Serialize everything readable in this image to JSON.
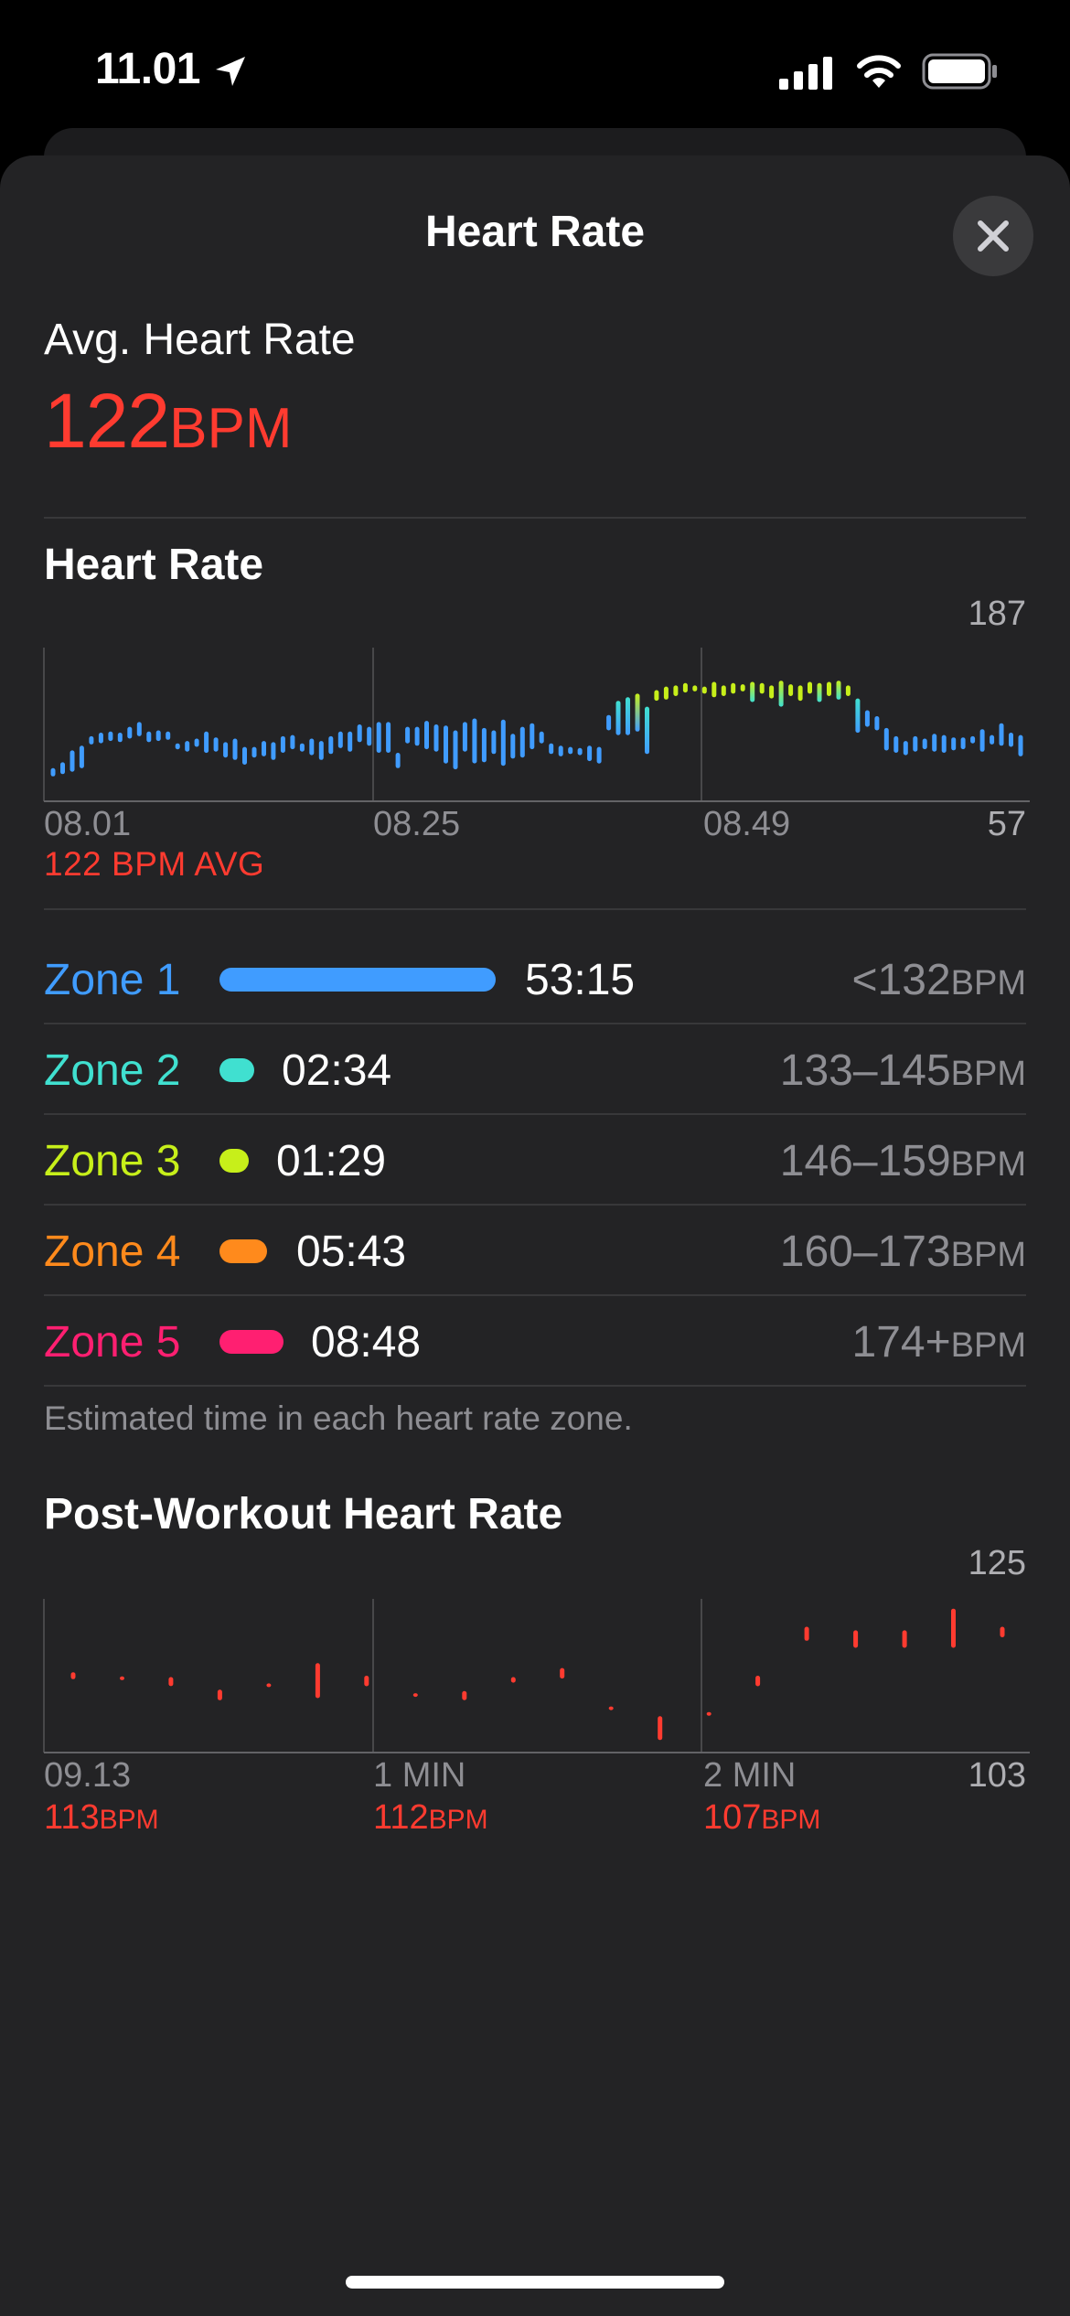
{
  "status_bar": {
    "time": "11.01",
    "icons": [
      "location-arrow-icon",
      "cellular-signal-icon",
      "wifi-icon",
      "battery-icon"
    ]
  },
  "sheet": {
    "title": "Heart Rate",
    "close_icon": "close-icon"
  },
  "average": {
    "label": "Avg. Heart Rate",
    "value": "122",
    "unit": "BPM",
    "color": "#ff3b30"
  },
  "heart_rate_chart": {
    "title": "Heart Rate",
    "y_max_label": "187",
    "y_min_label": "57",
    "x_labels": [
      "08.01",
      "08.25",
      "08.49"
    ],
    "avg_caption": "122 BPM AVG"
  },
  "zones": {
    "items": [
      {
        "label": "Zone 1",
        "time": "53:15",
        "range": "<132",
        "unit": "BPM",
        "color": "#409cff",
        "duration_seconds": 3195
      },
      {
        "label": "Zone 2",
        "time": "02:34",
        "range": "133–145",
        "unit": "BPM",
        "color": "#40e0d0",
        "duration_seconds": 154
      },
      {
        "label": "Zone 3",
        "time": "01:29",
        "range": "146–159",
        "unit": "BPM",
        "color": "#c7ef1a",
        "duration_seconds": 89
      },
      {
        "label": "Zone 4",
        "time": "05:43",
        "range": "160–173",
        "unit": "BPM",
        "color": "#ff8a1c",
        "duration_seconds": 343
      },
      {
        "label": "Zone 5",
        "time": "08:48",
        "range": "174+",
        "unit": "BPM",
        "color": "#ff1f71",
        "duration_seconds": 528
      }
    ],
    "note": "Estimated time in each heart rate zone."
  },
  "post_workout": {
    "title": "Post-Workout Heart Rate",
    "y_max_label": "125",
    "y_min_label": "103",
    "x_labels": [
      "09.13",
      "1 MIN",
      "2 MIN"
    ],
    "captions": [
      {
        "value": "113",
        "unit": "BPM"
      },
      {
        "value": "112",
        "unit": "BPM"
      },
      {
        "value": "107",
        "unit": "BPM"
      }
    ]
  },
  "chart_data": [
    {
      "type": "bar",
      "title": "Heart Rate",
      "ylim": [
        57,
        187
      ],
      "x_tick_labels": [
        "08.01",
        "08.25",
        "08.49"
      ],
      "avg": 122,
      "zone_thresholds": [
        132,
        145,
        159,
        173
      ],
      "series": [
        {
          "ranges": [
            [
              78,
              85
            ],
            [
              80,
              90
            ],
            [
              82,
              100
            ],
            [
              85,
              104
            ],
            [
              105,
              112
            ],
            [
              106,
              115
            ],
            [
              108,
              116
            ],
            [
              107,
              115
            ],
            [
              110,
              120
            ],
            [
              112,
              124
            ],
            [
              107,
              116
            ],
            [
              108,
              117
            ],
            [
              109,
              116
            ],
            [
              101,
              106
            ],
            [
              99,
              108
            ],
            [
              103,
              110
            ],
            [
              98,
              116
            ],
            [
              99,
              111
            ],
            [
              94,
              107
            ],
            [
              92,
              110
            ],
            [
              88,
              103
            ],
            [
              94,
              103
            ],
            [
              95,
              108
            ],
            [
              92,
              107
            ],
            [
              98,
              112
            ],
            [
              101,
              113
            ],
            [
              99,
              106
            ],
            [
              96,
              110
            ],
            [
              92,
              108
            ],
            [
              97,
              112
            ],
            [
              102,
              116
            ],
            [
              99,
              116
            ],
            [
              107,
              122
            ],
            [
              104,
              120
            ],
            [
              98,
              124
            ],
            [
              98,
              124
            ],
            [
              85,
              98
            ],
            [
              106,
              120
            ],
            [
              104,
              120
            ],
            [
              101,
              125
            ],
            [
              99,
              122
            ],
            [
              89,
              121
            ],
            [
              84,
              117
            ],
            [
              99,
              124
            ],
            [
              89,
              127
            ],
            [
              90,
              119
            ],
            [
              97,
              117
            ],
            [
              87,
              126
            ],
            [
              93,
              114
            ],
            [
              94,
              120
            ],
            [
              101,
              123
            ],
            [
              106,
              116
            ],
            [
              97,
              106
            ],
            [
              95,
              104
            ],
            [
              97,
              103
            ],
            [
              96,
              102
            ],
            [
              91,
              104
            ],
            [
              89,
              103
            ],
            [
              117,
              130
            ],
            [
              113,
              142
            ],
            [
              113,
              145
            ],
            [
              116,
              148
            ],
            [
              97,
              137
            ],
            [
              142,
              151
            ],
            [
              143,
              154
            ],
            [
              146,
              155
            ],
            [
              149,
              157
            ],
            [
              150,
              155
            ],
            [
              148,
              154
            ],
            [
              145,
              158
            ],
            [
              146,
              155
            ],
            [
              148,
              157
            ],
            [
              150,
              156
            ],
            [
              141,
              158
            ],
            [
              148,
              157
            ],
            [
              144,
              155
            ],
            [
              137,
              159
            ],
            [
              146,
              156
            ],
            [
              142,
              155
            ],
            [
              148,
              158
            ],
            [
              141,
              157
            ],
            [
              146,
              158
            ],
            [
              143,
              159
            ],
            [
              146,
              155
            ],
            [
              115,
              144
            ],
            [
              120,
              134
            ],
            [
              117,
              129
            ],
            [
              100,
              119
            ],
            [
              98,
              112
            ],
            [
              96,
              108
            ],
            [
              99,
              112
            ],
            [
              101,
              110
            ],
            [
              99,
              114
            ],
            [
              98,
              113
            ],
            [
              100,
              111
            ],
            [
              101,
              111
            ],
            [
              106,
              112
            ],
            [
              99,
              118
            ],
            [
              105,
              113
            ],
            [
              104,
              123
            ],
            [
              103,
              115
            ],
            [
              95,
              113
            ]
          ]
        }
      ]
    },
    {
      "type": "bar",
      "title": "Post-Workout Heart Rate",
      "ylim": [
        103,
        125
      ],
      "x_tick_labels": [
        "09.13",
        "1 MIN",
        "2 MIN"
      ],
      "series": [
        {
          "ranges": [
            [
              113.5,
              114.5
            ],
            [
              113.4,
              113.9
            ],
            [
              112.5,
              113.8
            ],
            [
              110.5,
              112
            ],
            [
              112.4,
              112.9
            ],
            [
              110.8,
              115.8
            ],
            [
              112.5,
              114
            ],
            [
              111.1,
              111.5
            ],
            [
              110.5,
              111.8
            ],
            [
              113,
              113.8
            ],
            [
              113.6,
              115.1
            ],
            [
              109.1,
              109.6
            ],
            [
              104.8,
              108.2
            ],
            [
              108.3,
              108.8
            ],
            [
              112.5,
              114
            ],
            [
              119,
              121
            ],
            [
              118,
              120.5
            ],
            [
              118,
              120.5
            ],
            [
              118,
              123.6
            ],
            [
              119.5,
              121
            ]
          ]
        }
      ]
    }
  ]
}
